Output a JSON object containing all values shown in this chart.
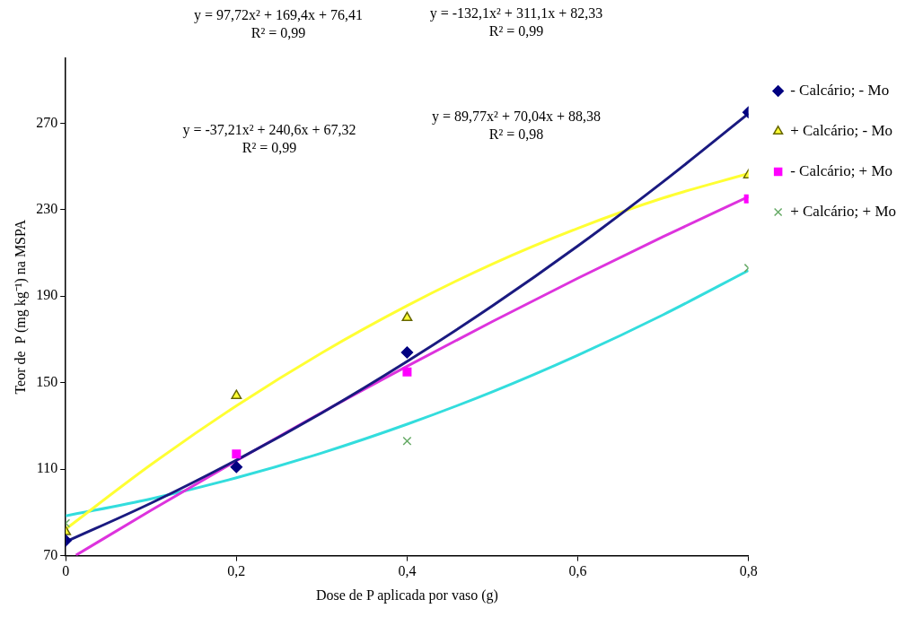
{
  "chart_data": {
    "type": "scatter",
    "xlabel": "Dose de P aplicada por vaso (g)",
    "ylabel": "Teor de  P (mg kg⁻¹) na MSPA",
    "x": [
      0,
      0.2,
      0.4,
      0.8
    ],
    "series": [
      {
        "name": "- Calcário; - Mo",
        "color": "#000080",
        "marker": "diamond",
        "values": [
          77,
          111,
          164,
          275
        ]
      },
      {
        "name": "+ Calcário; - Mo",
        "color": "#666600",
        "marker": "triangle",
        "values": [
          81,
          144,
          180,
          246
        ]
      },
      {
        "name": "- Calcário; + Mo",
        "color": "#ff00ff",
        "marker": "square",
        "values": [
          null,
          117,
          155,
          235
        ]
      },
      {
        "name": "+ Calcário; + Mo",
        "color": "#66aa66",
        "marker": "cross",
        "values": [
          85,
          null,
          123,
          203
        ]
      },
      {
        "type": "line",
        "color": "#1a1a80",
        "marker": "none",
        "x": [
          0,
          0.1,
          0.2,
          0.3,
          0.4,
          0.5,
          0.6,
          0.7,
          0.8
        ],
        "values": [
          76.4,
          94.3,
          114.2,
          136.0,
          159.8,
          185.5,
          213.2,
          242.9,
          274.4
        ]
      },
      {
        "type": "line",
        "color": "#ffff33",
        "marker": "none",
        "x": [
          0,
          0.1,
          0.2,
          0.3,
          0.4,
          0.5,
          0.6,
          0.7,
          0.8
        ],
        "values": [
          82.3,
          112.1,
          139.3,
          163.8,
          185.6,
          204.9,
          221.4,
          235.4,
          246.7
        ]
      },
      {
        "type": "line",
        "color": "#dd33dd",
        "marker": "none",
        "x": [
          0.012,
          0.1,
          0.2,
          0.3,
          0.4,
          0.5,
          0.6,
          0.7,
          0.8
        ],
        "values": [
          70.2,
          91.0,
          113.9,
          136.2,
          157.6,
          178.3,
          198.3,
          217.5,
          236.0
        ]
      },
      {
        "type": "line",
        "color": "#33dddd",
        "marker": "none",
        "x": [
          0,
          0.1,
          0.2,
          0.3,
          0.4,
          0.5,
          0.6,
          0.7,
          0.8
        ],
        "values": [
          88.4,
          96.3,
          106.0,
          117.5,
          130.8,
          145.8,
          162.7,
          181.4,
          201.9
        ]
      }
    ],
    "xlim": [
      0,
      0.8
    ],
    "xticks": [
      0,
      {
        "value": 0.2,
        "label": "0,2"
      },
      {
        "value": 0.4,
        "label": "0,4"
      },
      {
        "value": 0.6,
        "label": "0,6"
      },
      {
        "value": 0.8,
        "label": "0,8"
      }
    ],
    "ylim": [
      70,
      300
    ],
    "yticks": [
      70,
      110,
      150,
      190,
      230,
      270
    ],
    "grid": false,
    "legend": "right",
    "line_style": "solid",
    "annotations": [
      "y = 97,72x² + 169,4x + 76,41\nR² = 0,99",
      "y = -132,1x² + 311,1x + 82,33\nR² = 0,99",
      "y = -37,21x² + 240,6x + 67,32\nR² = 0,99",
      "y = 89,77x² + 70,04x + 88,38\nR² = 0,98"
    ]
  }
}
